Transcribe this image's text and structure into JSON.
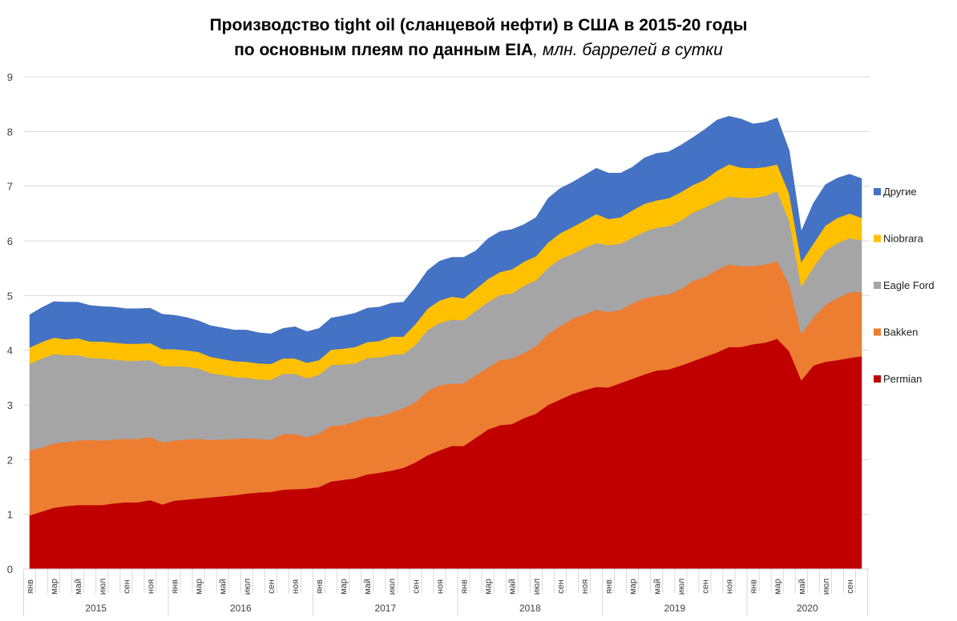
{
  "chart_data": {
    "type": "area",
    "stacked": true,
    "title": "Производство tight oil (сланцевой нефти) в США в 2015-20 годы",
    "subtitle_bold": "по основным плеям по данным EIA",
    "subtitle_italic": ", млн. баррелей в сутки",
    "xlabel": "",
    "ylabel": "",
    "ylim": [
      0,
      9
    ],
    "yticks": [
      "0",
      "1",
      "2",
      "3",
      "4",
      "5",
      "6",
      "7",
      "8",
      "9"
    ],
    "grid": true,
    "legend_position": "right",
    "years": [
      "2015",
      "2016",
      "2017",
      "2018",
      "2019",
      "2020"
    ],
    "month_labels": [
      "янв",
      "",
      "мар",
      "",
      "май",
      "",
      "июл",
      "",
      "сен",
      "",
      "ноя",
      ""
    ],
    "x_start": "2015-01",
    "x_end": "2020-10",
    "series": [
      {
        "name": "Permian",
        "color": "#C00000",
        "values": [
          0.98,
          1.05,
          1.12,
          1.15,
          1.17,
          1.17,
          1.17,
          1.2,
          1.22,
          1.22,
          1.26,
          1.18,
          1.25,
          1.27,
          1.29,
          1.31,
          1.33,
          1.35,
          1.38,
          1.4,
          1.41,
          1.45,
          1.46,
          1.47,
          1.5,
          1.6,
          1.63,
          1.66,
          1.73,
          1.76,
          1.8,
          1.85,
          1.95,
          2.08,
          2.17,
          2.25,
          2.25,
          2.4,
          2.55,
          2.63,
          2.65,
          2.76,
          2.84,
          3.0,
          3.1,
          3.2,
          3.27,
          3.33,
          3.32,
          3.4,
          3.48,
          3.56,
          3.63,
          3.65,
          3.72,
          3.8,
          3.88,
          3.96,
          4.06,
          4.06,
          4.11,
          4.14,
          4.21,
          3.98,
          3.45,
          3.72,
          3.79,
          3.82,
          3.86,
          3.89
        ]
      },
      {
        "name": "Bakken",
        "color": "#ED7D31",
        "values": [
          1.19,
          1.17,
          1.18,
          1.17,
          1.18,
          1.19,
          1.18,
          1.17,
          1.16,
          1.16,
          1.15,
          1.14,
          1.1,
          1.1,
          1.09,
          1.05,
          1.04,
          1.03,
          1.01,
          0.98,
          0.95,
          1.02,
          1.01,
          0.94,
          0.98,
          1.02,
          1.0,
          1.04,
          1.05,
          1.03,
          1.06,
          1.09,
          1.1,
          1.17,
          1.19,
          1.14,
          1.14,
          1.15,
          1.13,
          1.19,
          1.2,
          1.19,
          1.24,
          1.3,
          1.34,
          1.38,
          1.38,
          1.41,
          1.38,
          1.34,
          1.38,
          1.39,
          1.37,
          1.37,
          1.4,
          1.47,
          1.46,
          1.51,
          1.51,
          1.48,
          1.43,
          1.43,
          1.42,
          1.22,
          0.85,
          0.88,
          1.04,
          1.14,
          1.2,
          1.18
        ]
      },
      {
        "name": "Eagle Ford",
        "color": "#A5A5A5",
        "values": [
          1.58,
          1.63,
          1.63,
          1.59,
          1.56,
          1.5,
          1.5,
          1.46,
          1.43,
          1.43,
          1.41,
          1.39,
          1.36,
          1.33,
          1.29,
          1.22,
          1.18,
          1.13,
          1.11,
          1.09,
          1.1,
          1.1,
          1.1,
          1.08,
          1.07,
          1.11,
          1.11,
          1.06,
          1.08,
          1.08,
          1.06,
          0.99,
          1.05,
          1.12,
          1.14,
          1.17,
          1.16,
          1.17,
          1.2,
          1.19,
          1.19,
          1.23,
          1.2,
          1.21,
          1.23,
          1.18,
          1.22,
          1.22,
          1.22,
          1.21,
          1.2,
          1.22,
          1.24,
          1.25,
          1.25,
          1.25,
          1.27,
          1.25,
          1.24,
          1.25,
          1.25,
          1.25,
          1.28,
          1.16,
          0.86,
          0.92,
          0.99,
          1.0,
          0.99,
          0.94
        ]
      },
      {
        "name": "Niobrara",
        "color": "#FFC000",
        "values": [
          0.3,
          0.3,
          0.3,
          0.29,
          0.31,
          0.3,
          0.31,
          0.31,
          0.31,
          0.31,
          0.31,
          0.31,
          0.31,
          0.3,
          0.3,
          0.3,
          0.29,
          0.29,
          0.29,
          0.29,
          0.29,
          0.28,
          0.28,
          0.28,
          0.27,
          0.28,
          0.29,
          0.3,
          0.29,
          0.3,
          0.33,
          0.32,
          0.38,
          0.39,
          0.41,
          0.42,
          0.4,
          0.4,
          0.42,
          0.42,
          0.44,
          0.44,
          0.44,
          0.46,
          0.47,
          0.49,
          0.5,
          0.53,
          0.48,
          0.48,
          0.5,
          0.51,
          0.5,
          0.51,
          0.52,
          0.5,
          0.51,
          0.56,
          0.59,
          0.55,
          0.54,
          0.53,
          0.49,
          0.5,
          0.45,
          0.43,
          0.46,
          0.46,
          0.45,
          0.41
        ]
      },
      {
        "name": "Другие",
        "color": "#4472C4",
        "values": [
          0.6,
          0.63,
          0.66,
          0.68,
          0.66,
          0.66,
          0.64,
          0.65,
          0.64,
          0.64,
          0.64,
          0.64,
          0.62,
          0.6,
          0.57,
          0.57,
          0.57,
          0.57,
          0.58,
          0.56,
          0.55,
          0.55,
          0.58,
          0.57,
          0.58,
          0.58,
          0.6,
          0.62,
          0.62,
          0.62,
          0.61,
          0.63,
          0.67,
          0.7,
          0.72,
          0.72,
          0.75,
          0.7,
          0.74,
          0.74,
          0.73,
          0.68,
          0.71,
          0.81,
          0.82,
          0.82,
          0.83,
          0.84,
          0.84,
          0.81,
          0.79,
          0.84,
          0.86,
          0.85,
          0.86,
          0.87,
          0.92,
          0.93,
          0.88,
          0.89,
          0.81,
          0.82,
          0.85,
          0.79,
          0.57,
          0.74,
          0.75,
          0.73,
          0.72,
          0.72
        ]
      }
    ],
    "legend_order": [
      "Другие",
      "Niobrara",
      "Eagle Ford",
      "Bakken",
      "Permian"
    ]
  }
}
